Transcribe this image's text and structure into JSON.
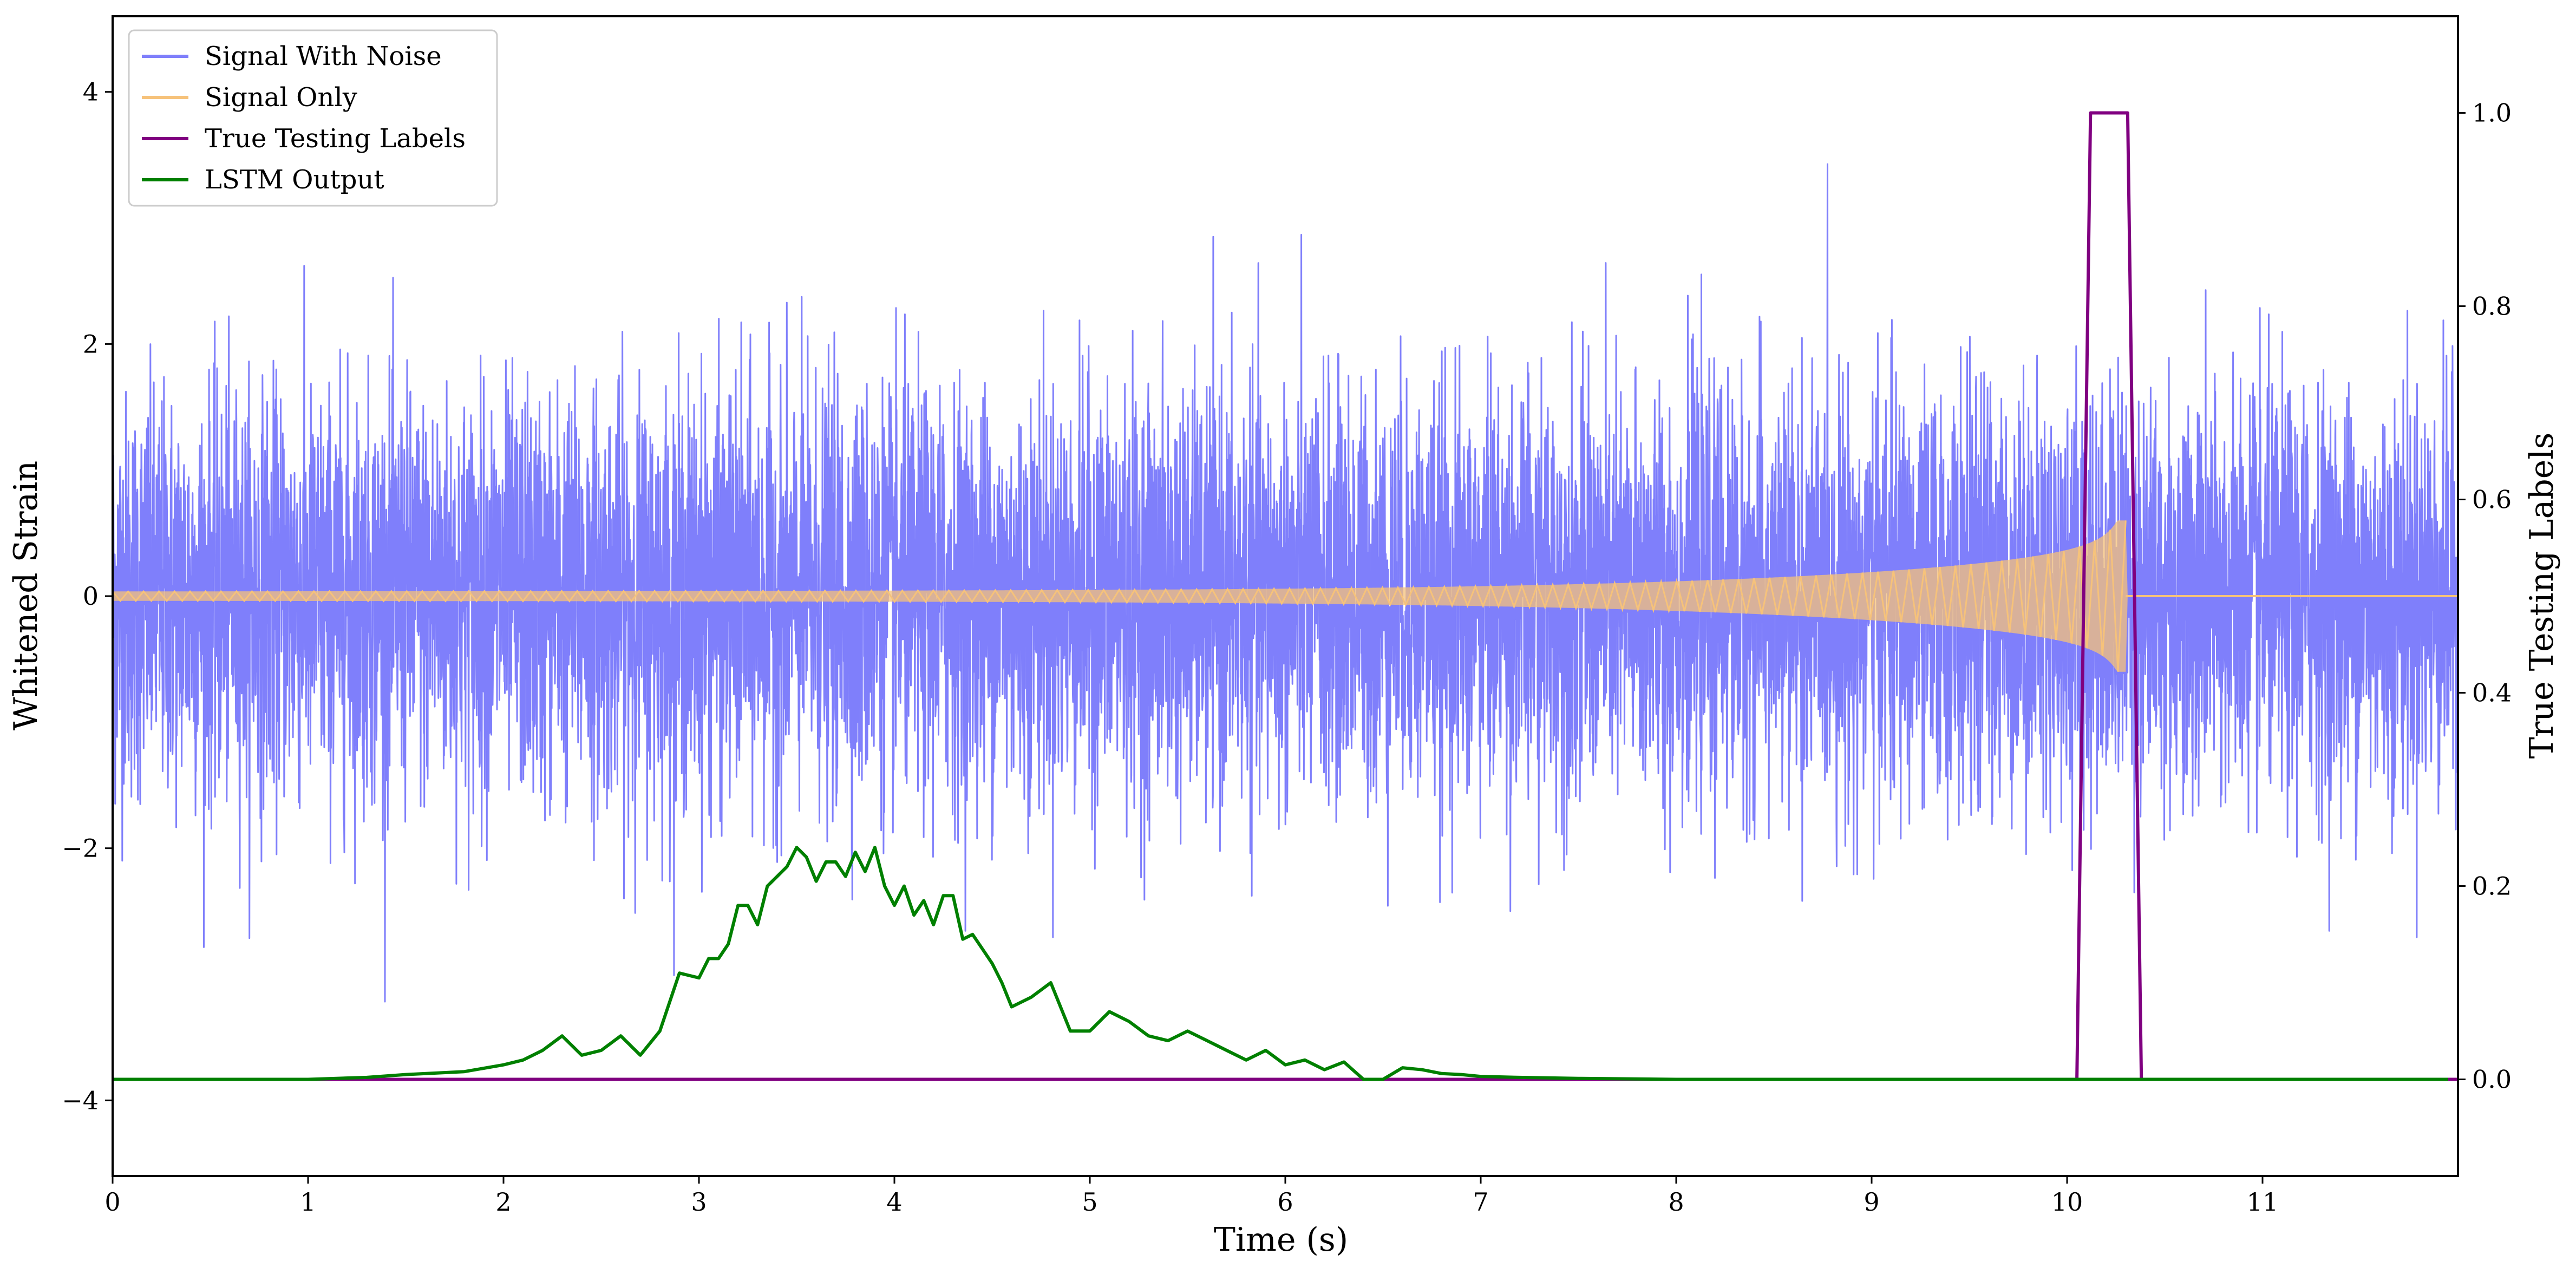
{
  "chart_data": {
    "type": "line",
    "xlabel": "Time (s)",
    "ylabel_left": "Whitened Strain",
    "ylabel_right": "True Testing Labels",
    "xlim": [
      0,
      12
    ],
    "ylim_left": [
      -4.6,
      4.6
    ],
    "ylim_right": [
      -0.1,
      1.1
    ],
    "xticks": [
      0,
      1,
      2,
      3,
      4,
      5,
      6,
      7,
      8,
      9,
      10,
      11
    ],
    "xtick_labels": [
      "0",
      "1",
      "2",
      "3",
      "4",
      "5",
      "6",
      "7",
      "8",
      "9",
      "10",
      "11"
    ],
    "yticks_left": [
      -4,
      -2,
      0,
      2,
      4
    ],
    "ytick_labels_left": [
      "−4",
      "−2",
      "0",
      "2",
      "4"
    ],
    "yticks_right": [
      0.0,
      0.2,
      0.4,
      0.6,
      0.8,
      1.0
    ],
    "ytick_labels_right": [
      "0.0",
      "0.2",
      "0.4",
      "0.6",
      "0.8",
      "1.0"
    ],
    "grid": false,
    "legend_position": "upper-left",
    "series": [
      {
        "name": "Signal With Noise",
        "axis": "left",
        "color": "#7f7ffb",
        "kind": "noisy-signal",
        "stdev": 0.8,
        "peak_max": 4.3,
        "peak_min": -4.1,
        "x_range": [
          0,
          12
        ]
      },
      {
        "name": "Signal Only",
        "axis": "left",
        "color": "#f6c27a",
        "kind": "chirp",
        "amplitude_start": 0.02,
        "amplitude_peak": 0.6,
        "merger_time": 10.3,
        "x_range": [
          0,
          12
        ]
      },
      {
        "name": "True Testing Labels",
        "axis": "right",
        "color": "#800080",
        "x": [
          0,
          10.05,
          10.12,
          10.31,
          10.38,
          12
        ],
        "y": [
          0,
          0,
          1,
          1,
          0,
          0
        ]
      },
      {
        "name": "LSTM Output",
        "axis": "right",
        "color": "#008000",
        "x": [
          0,
          0.5,
          1.0,
          1.3,
          1.5,
          1.8,
          2.0,
          2.1,
          2.2,
          2.3,
          2.4,
          2.5,
          2.6,
          2.7,
          2.8,
          2.9,
          3.0,
          3.05,
          3.1,
          3.15,
          3.2,
          3.25,
          3.3,
          3.35,
          3.4,
          3.45,
          3.5,
          3.55,
          3.6,
          3.65,
          3.7,
          3.75,
          3.8,
          3.85,
          3.9,
          3.95,
          4.0,
          4.05,
          4.1,
          4.15,
          4.2,
          4.25,
          4.3,
          4.35,
          4.4,
          4.45,
          4.5,
          4.55,
          4.6,
          4.7,
          4.8,
          4.9,
          5.0,
          5.1,
          5.2,
          5.3,
          5.4,
          5.5,
          5.6,
          5.7,
          5.8,
          5.9,
          6.0,
          6.1,
          6.2,
          6.3,
          6.4,
          6.5,
          6.6,
          6.7,
          6.8,
          6.9,
          7.0,
          7.2,
          7.5,
          8.0,
          9.0,
          10.0,
          11.0,
          11.95
        ],
        "y": [
          0.0,
          0.0,
          0.0,
          0.002,
          0.005,
          0.008,
          0.015,
          0.02,
          0.03,
          0.045,
          0.025,
          0.03,
          0.045,
          0.025,
          0.05,
          0.11,
          0.105,
          0.125,
          0.125,
          0.14,
          0.18,
          0.18,
          0.16,
          0.2,
          0.21,
          0.22,
          0.24,
          0.23,
          0.205,
          0.225,
          0.225,
          0.21,
          0.235,
          0.215,
          0.24,
          0.2,
          0.18,
          0.2,
          0.17,
          0.185,
          0.16,
          0.19,
          0.19,
          0.145,
          0.15,
          0.135,
          0.12,
          0.1,
          0.075,
          0.085,
          0.1,
          0.05,
          0.05,
          0.07,
          0.06,
          0.045,
          0.04,
          0.05,
          0.04,
          0.03,
          0.02,
          0.03,
          0.015,
          0.02,
          0.01,
          0.018,
          0.0,
          0.0,
          0.012,
          0.01,
          0.006,
          0.005,
          0.003,
          0.002,
          0.001,
          0.0,
          0.0,
          0.0,
          0.0,
          0.0
        ]
      }
    ]
  }
}
